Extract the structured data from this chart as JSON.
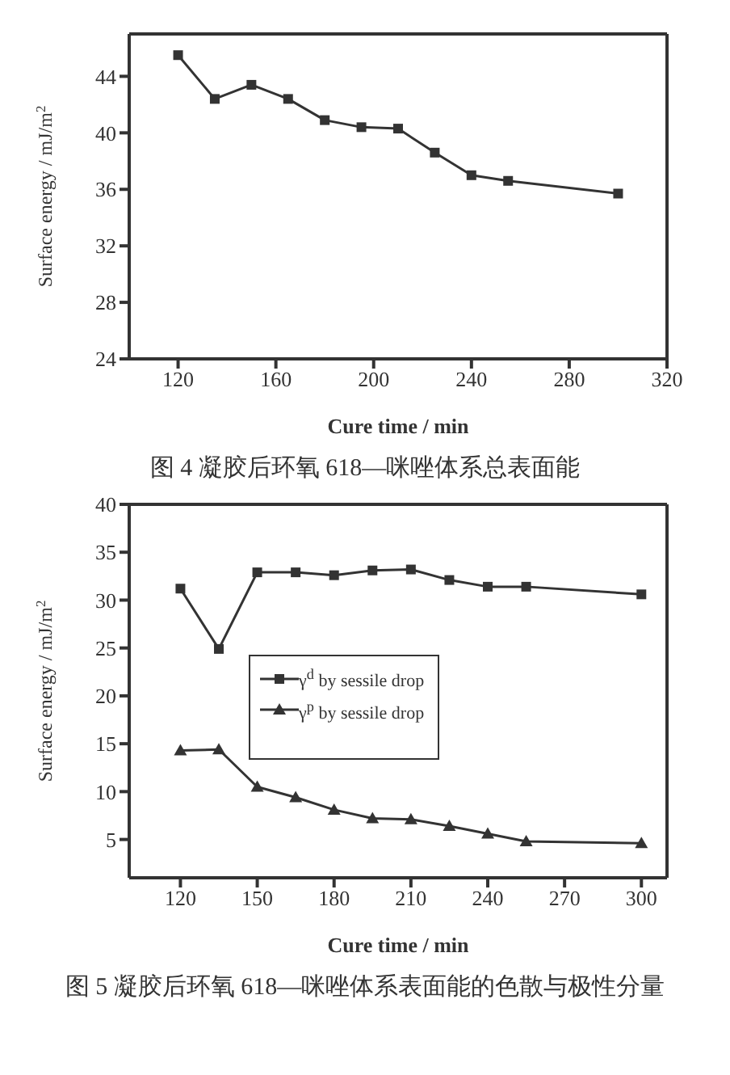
{
  "chart_data": [
    {
      "type": "line",
      "title": "图 4 凝胶后环氧 618—咪唑体系总表面能",
      "xlabel": "Cure time / min",
      "ylabel": "Surface energy / mJ/m$^{2}$",
      "x": [
        120,
        135,
        150,
        165,
        180,
        195,
        210,
        225,
        240,
        255,
        300
      ],
      "series": [
        {
          "color": "#333333",
          "marker": "square",
          "values": [
            45.5,
            42.4,
            43.4,
            42.4,
            40.9,
            40.4,
            40.3,
            38.6,
            37.0,
            36.6,
            35.7
          ]
        }
      ],
      "xlim": [
        100,
        320
      ],
      "xticks": [
        120,
        160,
        200,
        240,
        280,
        320
      ],
      "ylim": [
        24,
        47
      ],
      "yticks": [
        24,
        28,
        32,
        36,
        40,
        44
      ],
      "legend": false
    },
    {
      "type": "line",
      "title": "图 5 凝胶后环氧 618—咪唑体系表面能的色散与极性分量",
      "xlabel": "Cure time / min",
      "ylabel": "Surface energy / mJ/m$^{2}$",
      "x": [
        120,
        135,
        150,
        165,
        180,
        195,
        210,
        225,
        240,
        255,
        300
      ],
      "series": [
        {
          "name": "γ$^{d}$ by sessile drop",
          "color": "#333333",
          "marker": "square",
          "values": [
            31.2,
            24.9,
            32.9,
            32.9,
            32.6,
            33.1,
            33.2,
            32.1,
            31.4,
            31.4,
            30.6
          ]
        },
        {
          "name": "γ$^{p}$ by sessile drop",
          "color": "#333333",
          "marker": "triangle",
          "values": [
            14.3,
            14.4,
            10.5,
            9.4,
            8.1,
            7.2,
            7.1,
            6.4,
            5.6,
            4.8,
            4.6
          ]
        }
      ],
      "xlim": [
        100,
        310
      ],
      "xticks": [
        120,
        150,
        180,
        210,
        240,
        270,
        300
      ],
      "ylim": [
        1,
        40
      ],
      "yticks": [
        5,
        10,
        15,
        20,
        25,
        30,
        35,
        40
      ],
      "legend": "left"
    }
  ]
}
